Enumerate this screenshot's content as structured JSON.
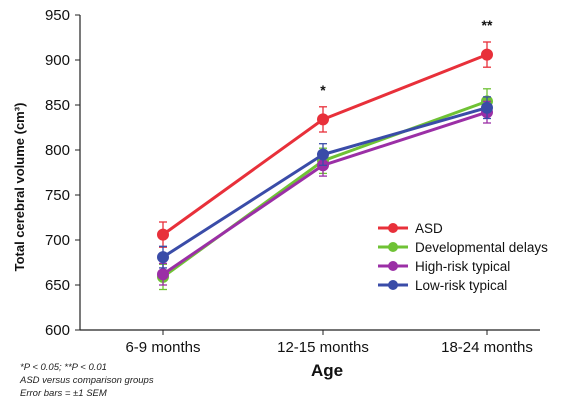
{
  "chart_data": {
    "type": "line",
    "title": "",
    "xlabel": "Age",
    "ylabel": "Total cerebral volume (cm³)",
    "categories": [
      "6-9 months",
      "12-15 months",
      "18-24 months"
    ],
    "ylim": [
      600,
      950
    ],
    "yticks": [
      600,
      650,
      700,
      750,
      800,
      850,
      900,
      950
    ],
    "grid": false,
    "legend_position": "right",
    "series": [
      {
        "name": "ASD",
        "color": "#e8303a",
        "values": [
          706,
          834,
          906
        ],
        "error": [
          14,
          14,
          14
        ]
      },
      {
        "name": "Developmental delays",
        "color": "#6fc235",
        "values": [
          659,
          788,
          854
        ],
        "error": [
          14,
          14,
          14
        ]
      },
      {
        "name": "High-risk typical",
        "color": "#9b2fa6",
        "values": [
          662,
          783,
          842
        ],
        "error": [
          12,
          12,
          12
        ]
      },
      {
        "name": "Low-risk typical",
        "color": "#3a4ca8",
        "values": [
          681,
          795,
          847
        ],
        "error": [
          12,
          12,
          12
        ]
      }
    ],
    "annotations": [
      {
        "category": "12-15 months",
        "text": "*"
      },
      {
        "category": "18-24 months",
        "text": "**"
      }
    ]
  },
  "footnotes": {
    "line1": "*P < 0.05; **P < 0.01",
    "line2": "ASD versus comparison groups",
    "line3": "Error bars = ±1 SEM"
  }
}
